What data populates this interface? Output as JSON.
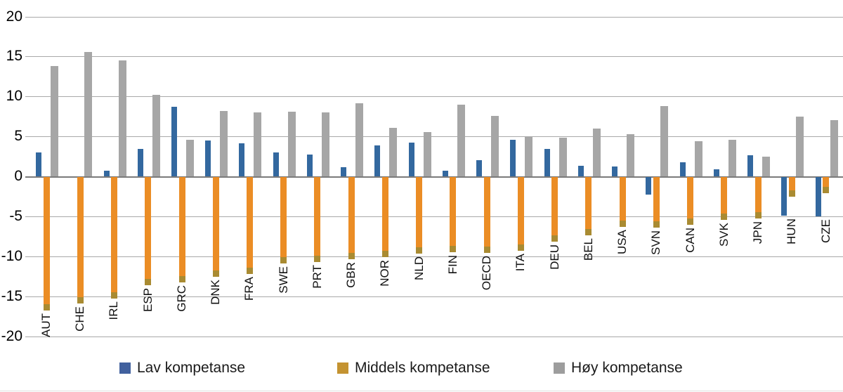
{
  "chart_data": {
    "type": "bar",
    "title": "",
    "categories": [
      "AUT",
      "CHE",
      "IRL",
      "ESP",
      "GRC",
      "DNK",
      "FRA",
      "SWE",
      "PRT",
      "GBR",
      "NOR",
      "NLD",
      "FIN",
      "OECD",
      "ITA",
      "DEU",
      "BEL",
      "USA",
      "SVN",
      "CAN",
      "SVK",
      "JPN",
      "HUN",
      "CZE"
    ],
    "series": [
      {
        "key": "lav",
        "name": "Lav kompetanse",
        "color": "#33689F",
        "legend_color": "#41619E",
        "values": [
          3.0,
          0,
          0.7,
          3.4,
          8.7,
          4.5,
          4.1,
          3.0,
          2.7,
          1.1,
          3.9,
          4.2,
          0.7,
          2.0,
          4.6,
          3.4,
          1.3,
          1.2,
          -2.2,
          1.8,
          0.9,
          2.6,
          -4.8,
          -4.9
        ]
      },
      {
        "key": "middels",
        "name": "Middels kompetanse",
        "color": "#EB8D25",
        "tip_color": "#A98B32",
        "legend_color": "#C49331",
        "values": [
          -16.7,
          -15.8,
          -15.2,
          -13.5,
          -13.2,
          -12.5,
          -12.1,
          -10.8,
          -10.6,
          -10.3,
          -10.0,
          -9.6,
          -9.4,
          -9.5,
          -9.2,
          -8.1,
          -7.3,
          -6.2,
          -6.3,
          -6.0,
          -5.4,
          -5.2,
          -2.5,
          -2.0
        ]
      },
      {
        "key": "hoy",
        "name": "Høy kompetanse",
        "color": "#A6A6A6",
        "legend_color": "#9D9D9D",
        "values": [
          13.8,
          15.6,
          14.5,
          10.2,
          4.6,
          8.2,
          8.0,
          8.1,
          8.0,
          9.1,
          6.1,
          5.5,
          9.0,
          7.6,
          4.9,
          4.8,
          6.0,
          5.3,
          8.8,
          4.4,
          4.6,
          2.5,
          7.5,
          7.0
        ]
      }
    ],
    "y_axis": {
      "min": -20,
      "max": 20,
      "step": 5,
      "tick_labels": [
        "20",
        "15",
        "10",
        "5",
        "0",
        "-5",
        "-10",
        "-15",
        "-20"
      ]
    },
    "grid": true,
    "legend_position": "bottom"
  }
}
